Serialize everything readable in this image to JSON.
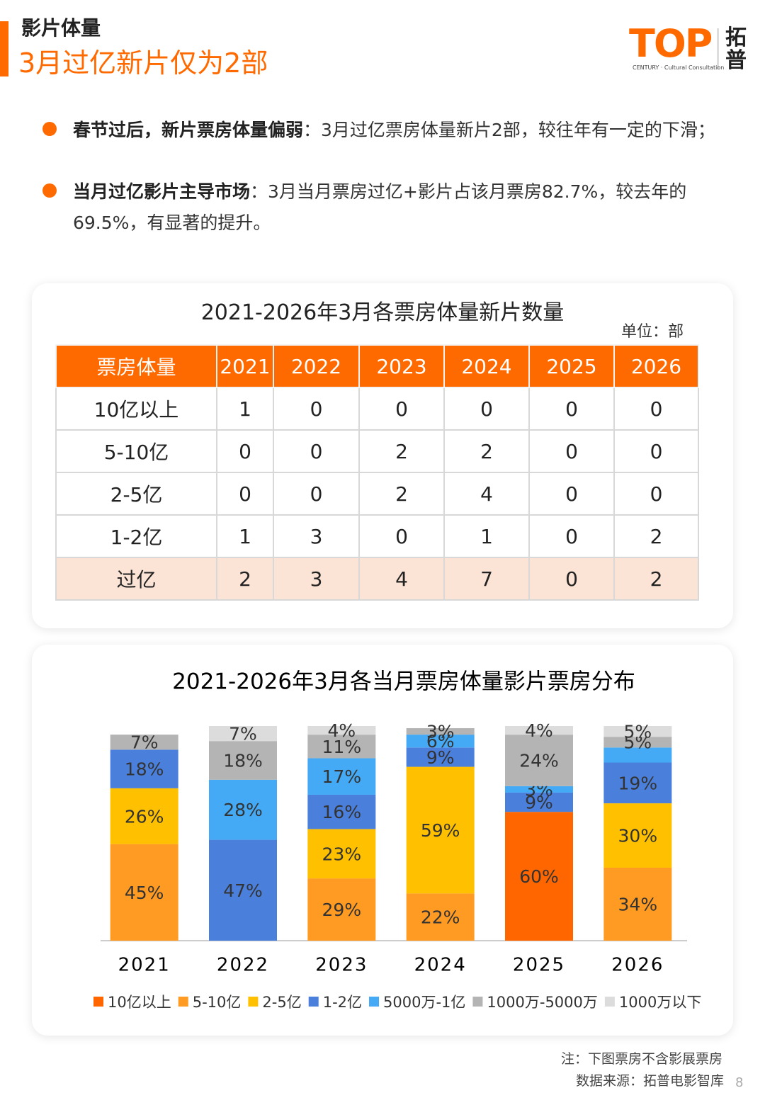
{
  "header": {
    "section": "影片体量",
    "title": "3月过亿新片仅为2部",
    "logo": "TOP",
    "logo_cn": "拓普",
    "logo_sub": "CENTURY · Cultural Consultation"
  },
  "bullets": [
    {
      "bold": "春节过后，新片票房体量偏弱",
      "text": "：3月过亿票房体量新片2部，较往年有一定的下滑；"
    },
    {
      "bold": "当月过亿影片主导市场",
      "text": "：3月当月票房过亿+影片占该月票房82.7%，较去年的69.5%，有显著的提升。"
    }
  ],
  "table": {
    "title": "2021-2026年3月各票房体量新片数量",
    "unit": "单位：部",
    "header": [
      "票房体量",
      "2021",
      "2022",
      "2023",
      "2024",
      "2025",
      "2026"
    ],
    "rows": [
      [
        "10亿以上",
        1,
        0,
        0,
        0,
        0,
        0
      ],
      [
        "5-10亿",
        0,
        0,
        2,
        2,
        0,
        0
      ],
      [
        "2-5亿",
        0,
        0,
        2,
        4,
        0,
        0
      ],
      [
        "1-2亿",
        1,
        3,
        0,
        1,
        0,
        2
      ],
      [
        "过亿",
        2,
        3,
        4,
        7,
        0,
        2
      ]
    ]
  },
  "chart_data": {
    "type": "stacked_bar",
    "title": "2021-2026年3月各当月票房体量影片票房分布",
    "categories": [
      "2021",
      "2022",
      "2023",
      "2024",
      "2025",
      "2026"
    ],
    "ylim": [
      0,
      100
    ],
    "series": [
      {
        "name": "10亿以上",
        "color": "#ff6600",
        "values": [
          null,
          null,
          null,
          null,
          60,
          null
        ],
        "value_labels": [
          null,
          null,
          null,
          null,
          "60%",
          null
        ]
      },
      {
        "name": "5-10亿",
        "color": "#ff9a22",
        "values": [
          45,
          null,
          29,
          22,
          null,
          34
        ],
        "value_labels": [
          "45%",
          null,
          "29%",
          "22%",
          null,
          "34%"
        ]
      },
      {
        "name": "2-5亿",
        "color": "#ffc000",
        "values": [
          26,
          null,
          23,
          59,
          null,
          30
        ],
        "value_labels": [
          "26%",
          null,
          "23%",
          "59%",
          null,
          "30%"
        ]
      },
      {
        "name": "1-2亿",
        "color": "#4a7fdc",
        "values": [
          18,
          47,
          16,
          9,
          9,
          19
        ],
        "value_labels": [
          "18%",
          "47%",
          "16%",
          "9%",
          "9%",
          "19%"
        ]
      },
      {
        "name": "5000万-1亿",
        "color": "#45aaf5",
        "values": [
          null,
          28,
          17,
          6,
          3,
          7
        ],
        "value_labels": [
          null,
          "28%",
          "17%",
          "6%",
          "3%",
          null
        ]
      },
      {
        "name": "1000万-5000万",
        "color": "#b4b4b4",
        "values": [
          7,
          18,
          11,
          3,
          24,
          5
        ],
        "value_labels": [
          "7%",
          "18%",
          "11%",
          "3%",
          "24%",
          "5%"
        ]
      },
      {
        "name": "1000万以下",
        "color": "#dcdcdc",
        "values": [
          null,
          7,
          4,
          null,
          4,
          5
        ],
        "value_labels": [
          null,
          "7%",
          "4%",
          null,
          "4%",
          "5%"
        ]
      }
    ]
  },
  "footer": {
    "note": "注：下图票房不含影展票房",
    "source": "数据来源：拓普电影智库",
    "page": "8"
  }
}
